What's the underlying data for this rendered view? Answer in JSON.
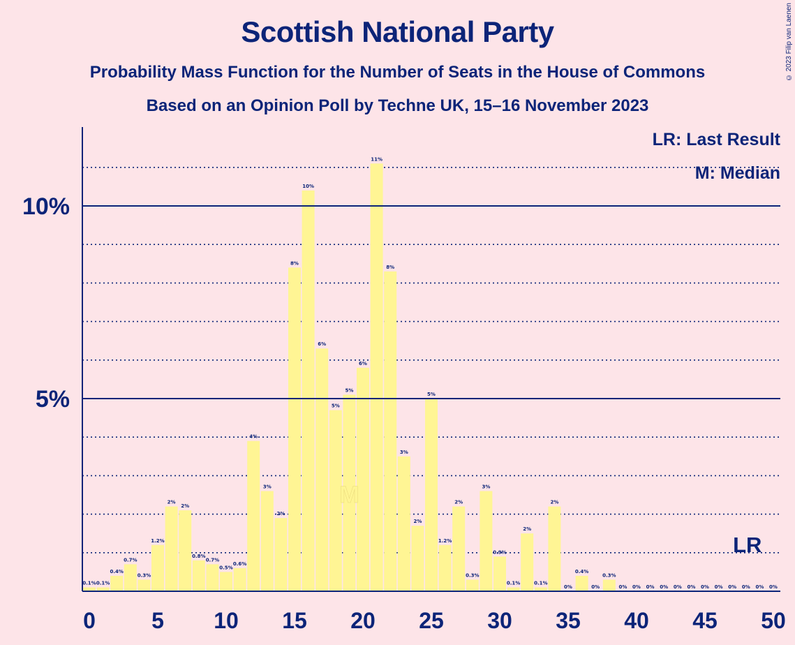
{
  "header": {
    "title": "Scottish National Party",
    "subtitle1": "Probability Mass Function for the Number of Seats in the House of Commons",
    "subtitle2": "Based on an Opinion Poll by Techne UK, 15–16 November 2023",
    "copyright": "© 2023 Filip van Laenen"
  },
  "legend": {
    "lr": "LR: Last Result",
    "median": "M: Median"
  },
  "colors": {
    "background": "#fde4e8",
    "bar": "#fff594",
    "axis": "#0c2478"
  },
  "chart_data": {
    "type": "bar",
    "title": "Scottish National Party",
    "xlabel": "",
    "ylabel": "",
    "x": [
      0,
      1,
      2,
      3,
      4,
      5,
      6,
      7,
      8,
      9,
      10,
      11,
      12,
      13,
      14,
      15,
      16,
      17,
      18,
      19,
      20,
      21,
      22,
      23,
      24,
      25,
      26,
      27,
      28,
      29,
      30,
      31,
      32,
      33,
      34,
      35,
      36,
      37,
      38,
      39,
      40,
      41,
      42,
      43,
      44,
      45,
      46,
      47,
      48,
      49,
      50
    ],
    "values": [
      0.1,
      0.1,
      0.4,
      0.7,
      0.3,
      1.2,
      2.2,
      2.1,
      0.8,
      0.7,
      0.5,
      0.6,
      3.9,
      2.6,
      1.9,
      8.4,
      10.4,
      6.3,
      4.7,
      5.1,
      5.8,
      11.1,
      8.3,
      3.5,
      1.7,
      5.0,
      1.2,
      2.2,
      0.3,
      2.6,
      0.9,
      0.1,
      1.5,
      0.1,
      2.2,
      0.0,
      0.4,
      0.0,
      0.3,
      0.0,
      0.0,
      0.0,
      0.0,
      0.0,
      0.0,
      0.0,
      0.0,
      0.0,
      0.0,
      0.0,
      0.0
    ],
    "labels": [
      "0.1%",
      "0.1%",
      "0.4%",
      "0.7%",
      "0.3%",
      "1.2%",
      "2%",
      "2%",
      "0.8%",
      "0.7%",
      "0.5%",
      "0.6%",
      "4%",
      "3%",
      "2%",
      "8%",
      "10%",
      "6%",
      "5%",
      "5%",
      "6%",
      "11%",
      "8%",
      "3%",
      "2%",
      "5%",
      "1.2%",
      "2%",
      "0.3%",
      "3%",
      "0.9%",
      "0.1%",
      "2%",
      "0.1%",
      "2%",
      "0%",
      "0.4%",
      "0%",
      "0.3%",
      "0%",
      "0%",
      "0%",
      "0%",
      "0%",
      "0%",
      "0%",
      "0%",
      "0%",
      "0%",
      "0%",
      "0%"
    ],
    "x_ticks": [
      0,
      5,
      10,
      15,
      20,
      25,
      30,
      35,
      40,
      45,
      50
    ],
    "x_tick_labels": [
      "0",
      "5",
      "10",
      "15",
      "20",
      "25",
      "30",
      "35",
      "40",
      "45",
      "50"
    ],
    "y_ticks": [
      5,
      10
    ],
    "y_tick_labels": [
      "5%",
      "10%"
    ],
    "ylim": [
      0,
      12
    ],
    "xlim": [
      -0.5,
      50.5
    ],
    "minor_grid": [
      1,
      2,
      3,
      4,
      6,
      7,
      8,
      9,
      11
    ],
    "median": 19,
    "median_marker": "M",
    "last_result": 48,
    "last_result_marker": "LR"
  }
}
